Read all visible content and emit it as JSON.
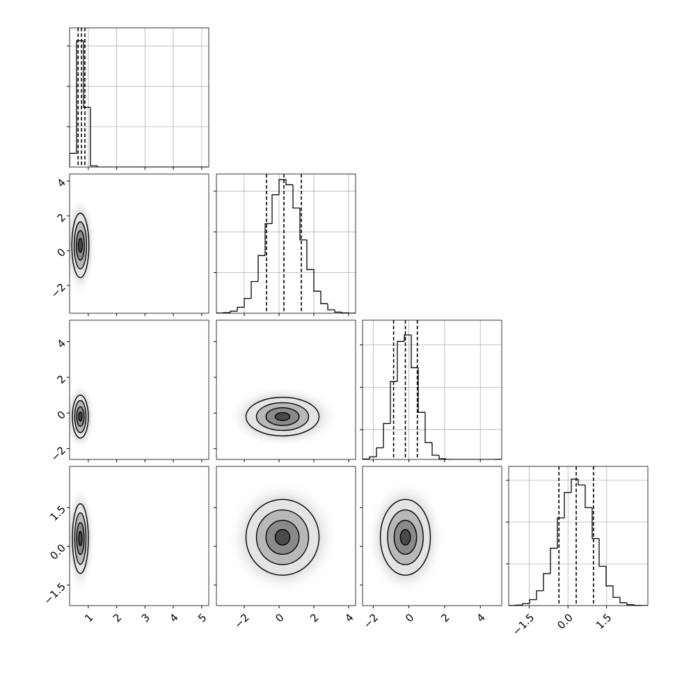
{
  "chart_data": {
    "type": "corner",
    "grid": true,
    "hist_color": "#000000",
    "quantile_color": "#000000",
    "contour_fills": [
      "#e4e4e4",
      "#b8b8b8",
      "#8a8a8a",
      "#4a4a4a"
    ],
    "variables": [
      {
        "lim": [
          0.34,
          5.25
        ],
        "ticks": [
          1,
          2,
          3,
          4,
          5
        ],
        "bins": [
          0.34,
          0.5855,
          0.831,
          1.0765,
          1.322,
          1.5675,
          1.813,
          2.0585,
          2.304,
          2.5495,
          2.795,
          3.0405,
          3.286,
          3.5315,
          3.777,
          4.0225,
          4.268,
          4.5135,
          4.759,
          5.0045,
          5.25
        ],
        "counts": [
          340,
          3130,
          1480,
          30,
          0,
          0,
          0,
          0,
          0,
          0,
          0,
          0,
          0,
          0,
          0,
          0,
          0,
          0,
          0,
          0
        ],
        "counts_ylim": [
          0,
          3450
        ],
        "counts_yticks": [
          1000,
          2000,
          3000
        ],
        "quantiles": [
          0.64,
          0.76,
          0.88
        ]
      },
      {
        "lim": [
          -3.6,
          4.4
        ],
        "ticks": [
          {
            "value": -2,
            "label": "−2"
          },
          0,
          2,
          4
        ],
        "bins": [
          -3.6,
          -3.2,
          -2.8,
          -2.4,
          -2.0,
          -1.6,
          -1.2,
          -0.8,
          -0.4,
          0,
          0.4,
          0.8,
          1.2,
          1.6,
          2.0,
          2.4,
          2.8,
          3.2,
          3.6,
          4.0,
          4.4
        ],
        "counts": [
          2,
          7,
          25,
          73,
          182,
          389,
          709,
          1101,
          1455,
          1642,
          1578,
          1292,
          901,
          536,
          271,
          117,
          43,
          14,
          4,
          1
        ],
        "counts_ylim": [
          0,
          1710
        ],
        "counts_yticks": [
          500,
          1000,
          1500
        ],
        "quantiles": [
          -0.72,
          0.28,
          1.28
        ]
      },
      {
        "lim": [
          -2.6,
          5.2
        ],
        "ticks": [
          {
            "value": -2,
            "label": "−2"
          },
          0,
          2,
          4
        ],
        "bins": [
          -2.6,
          -2.21,
          -1.82,
          -1.43,
          -1.04,
          -0.65,
          -0.26,
          0.13,
          0.52,
          0.91,
          1.3,
          1.69,
          2.08,
          2.47,
          2.86,
          3.25,
          3.64,
          4.03,
          4.42,
          4.81,
          5.2
        ],
        "counts": [
          10,
          61,
          273,
          846,
          1836,
          2781,
          2934,
          2160,
          1110,
          399,
          99,
          17,
          2,
          0,
          0,
          0,
          0,
          0,
          0,
          3
        ],
        "counts_ylim": [
          0,
          3280
        ],
        "counts_yticks": [
          700,
          1700,
          2700
        ],
        "quantiles": [
          -0.86,
          -0.2,
          0.47
        ]
      },
      {
        "lim": [
          -2.3,
          3.1
        ],
        "ticks": [
          {
            "value": -1.5,
            "label": "−1.5"
          },
          {
            "value": 0,
            "label": "0.0"
          },
          1.5
        ],
        "bins": [
          -2.3,
          -2.03,
          -1.76,
          -1.49,
          -1.22,
          -0.95,
          -0.68,
          -0.41,
          -0.14,
          0.13,
          0.4,
          0.67,
          0.94,
          1.21,
          1.48,
          1.75,
          2.02,
          2.29,
          2.56,
          2.83,
          3.1
        ],
        "counts": [
          2,
          6,
          24,
          71,
          178,
          383,
          687,
          1050,
          1354,
          1515,
          1444,
          1173,
          803,
          471,
          236,
          99,
          35,
          11,
          3,
          1
        ],
        "counts_ylim": [
          0,
          1667
        ],
        "counts_yticks": [
          500,
          1000,
          1500
        ],
        "quantiles": [
          -0.35,
          0.32,
          0.99
        ]
      }
    ],
    "contours": [
      [
        [
          {
            "cx": 0.72,
            "cy": 0.3,
            "rx": 0.3,
            "ry": 1.85
          },
          {
            "cx": 0.72,
            "cy": 0.3,
            "rx": 0.22,
            "ry": 1.35
          },
          {
            "cx": 0.72,
            "cy": 0.3,
            "rx": 0.14,
            "ry": 0.85
          },
          {
            "cx": 0.72,
            "cy": 0.3,
            "rx": 0.07,
            "ry": 0.4
          }
        ]
      ],
      [
        [
          {
            "cx": 0.72,
            "cy": -0.2,
            "rx": 0.28,
            "ry": 1.2
          },
          {
            "cx": 0.72,
            "cy": -0.2,
            "rx": 0.2,
            "ry": 0.9
          },
          {
            "cx": 0.72,
            "cy": -0.2,
            "rx": 0.13,
            "ry": 0.55
          },
          {
            "cx": 0.72,
            "cy": -0.2,
            "rx": 0.06,
            "ry": 0.25
          }
        ],
        [
          {
            "cx": 0.2,
            "cy": -0.2,
            "rx": 2.1,
            "ry": 1.08
          },
          {
            "cx": 0.2,
            "cy": -0.2,
            "rx": 1.5,
            "ry": 0.78
          },
          {
            "cx": 0.2,
            "cy": -0.2,
            "rx": 0.95,
            "ry": 0.5
          },
          {
            "cx": 0.2,
            "cy": -0.2,
            "rx": 0.42,
            "ry": 0.22
          }
        ]
      ],
      [
        [
          {
            "cx": 0.72,
            "cy": 0.3,
            "rx": 0.28,
            "ry": 1.35
          },
          {
            "cx": 0.72,
            "cy": 0.3,
            "rx": 0.2,
            "ry": 1.0
          },
          {
            "cx": 0.72,
            "cy": 0.3,
            "rx": 0.13,
            "ry": 0.62
          },
          {
            "cx": 0.72,
            "cy": 0.3,
            "rx": 0.06,
            "ry": 0.28
          }
        ],
        [
          {
            "cx": 0.2,
            "cy": 0.35,
            "rx": 2.1,
            "ry": 1.47
          },
          {
            "cx": 0.2,
            "cy": 0.35,
            "rx": 1.5,
            "ry": 1.06
          },
          {
            "cx": 0.2,
            "cy": 0.35,
            "rx": 0.95,
            "ry": 0.66
          },
          {
            "cx": 0.2,
            "cy": 0.35,
            "rx": 0.42,
            "ry": 0.3
          }
        ],
        [
          {
            "cx": -0.2,
            "cy": 0.35,
            "rx": 1.4,
            "ry": 1.47
          },
          {
            "cx": -0.2,
            "cy": 0.35,
            "rx": 1.0,
            "ry": 1.06
          },
          {
            "cx": -0.2,
            "cy": 0.35,
            "rx": 0.63,
            "ry": 0.66
          },
          {
            "cx": -0.2,
            "cy": 0.35,
            "rx": 0.28,
            "ry": 0.3
          }
        ]
      ]
    ]
  }
}
